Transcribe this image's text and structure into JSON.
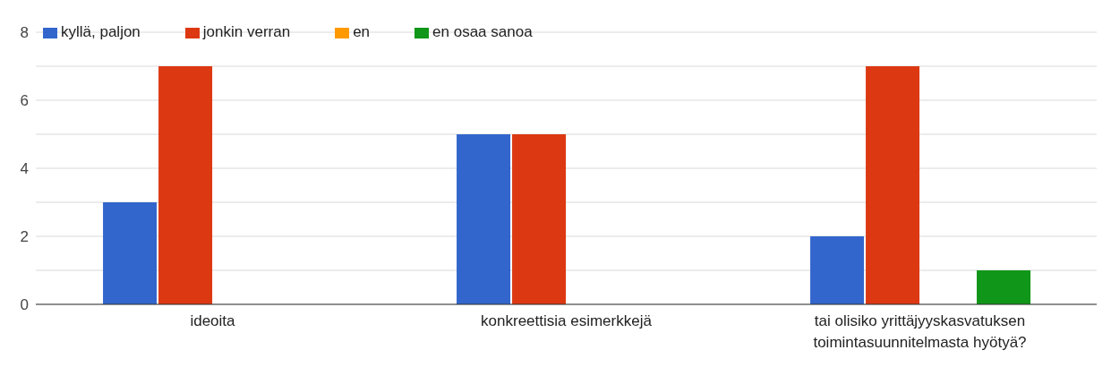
{
  "chart_data": {
    "type": "bar",
    "categories": [
      "ideoita",
      "konkreettisia esimerkkejä",
      "tai olisiko yrittäjyyskasvatuksen toimintasuunnitelmasta hyötyä?"
    ],
    "series": [
      {
        "name": "kyllä, paljon",
        "color": "#3366cc",
        "values": [
          3,
          5,
          2
        ]
      },
      {
        "name": "jonkin verran",
        "color": "#dc3912",
        "values": [
          7,
          5,
          7
        ]
      },
      {
        "name": "en",
        "color": "#ff9900",
        "values": [
          0,
          0,
          0
        ]
      },
      {
        "name": "en osaa sanoa",
        "color": "#109618",
        "values": [
          0,
          0,
          1
        ]
      }
    ],
    "ylim": [
      0,
      8
    ],
    "yticks": [
      0,
      {
        "value": 1,
        "label": null
      },
      2,
      {
        "value": 3,
        "label": null
      },
      4,
      {
        "value": 5,
        "label": null
      },
      6,
      {
        "value": 7,
        "label": null
      },
      8
    ],
    "grid": "y",
    "legend": "top left"
  }
}
